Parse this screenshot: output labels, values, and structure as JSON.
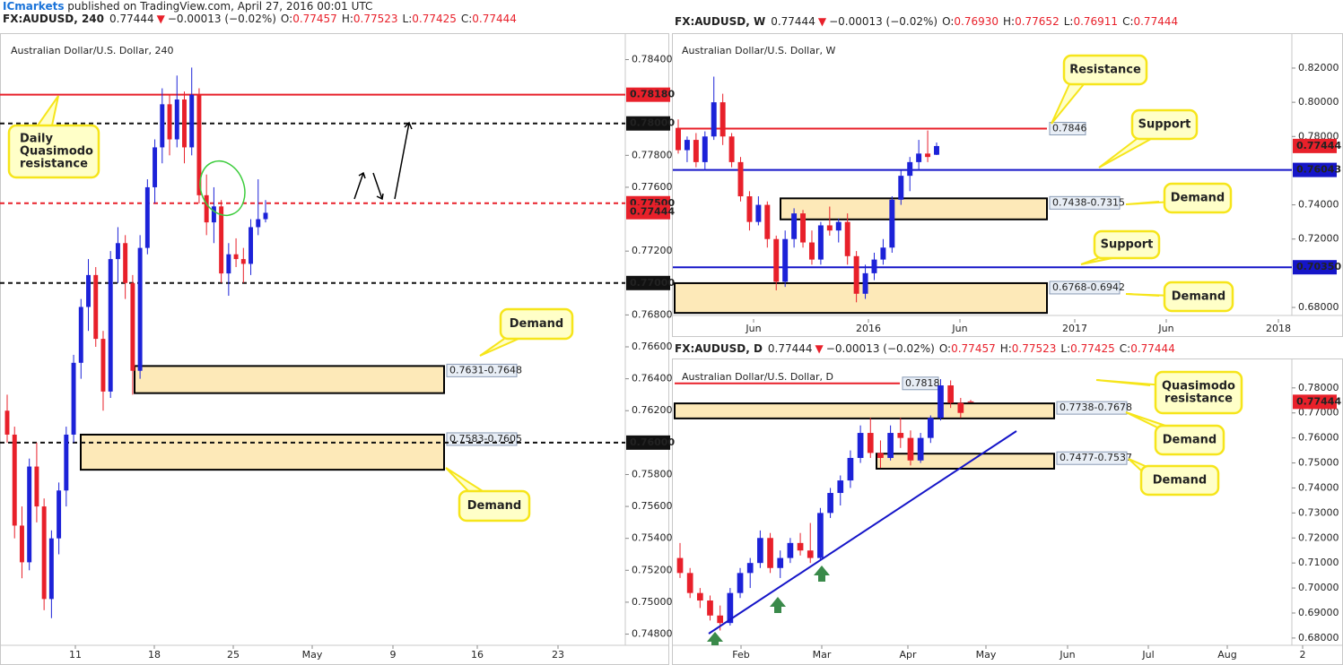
{
  "header": {
    "publisher": "ICmarkets",
    "published": " published on TradingView.com, April 27, 2016 00:01 UTC"
  },
  "charts": [
    {
      "type": "candlestick",
      "symbol": "FX:AUDUSD, 240",
      "last": "0.77444",
      "direction": "▼",
      "change": "−0.00013 (−0.02%)",
      "ohlc": [
        {
          "key": "O:",
          "value": "0.77457"
        },
        {
          "key": "H:",
          "value": "0.77523"
        },
        {
          "key": "L:",
          "value": "0.77425"
        },
        {
          "key": "C:",
          "value": "0.77444"
        }
      ],
      "title": "Australian Dollar/U.S. Dollar, 240",
      "ylim": [
        0.7473,
        0.7856
      ],
      "yticks": [
        {
          "value": 0.784,
          "label": "0.78400"
        },
        {
          "value": 0.778,
          "label": "0.77800"
        },
        {
          "value": 0.776,
          "label": "0.77600"
        },
        {
          "value": 0.772,
          "label": "0.77200"
        },
        {
          "value": 0.768,
          "label": "0.76800"
        },
        {
          "value": 0.766,
          "label": "0.76600"
        },
        {
          "value": 0.764,
          "label": "0.76400"
        },
        {
          "value": 0.762,
          "label": "0.76200"
        },
        {
          "value": 0.758,
          "label": "0.75800"
        },
        {
          "value": 0.756,
          "label": "0.75600"
        },
        {
          "value": 0.754,
          "label": "0.75400"
        },
        {
          "value": 0.752,
          "label": "0.75200"
        },
        {
          "value": 0.75,
          "label": "0.75000"
        },
        {
          "value": 0.748,
          "label": "0.74800"
        }
      ],
      "xlabels": [
        "11",
        "18",
        "25",
        "May",
        "9",
        "16",
        "23"
      ],
      "candles": [
        [
          0.762,
          0.763,
          0.76,
          0.7605
        ],
        [
          0.7605,
          0.761,
          0.754,
          0.7548
        ],
        [
          0.7548,
          0.756,
          0.7515,
          0.7525
        ],
        [
          0.7525,
          0.759,
          0.752,
          0.7585
        ],
        [
          0.7585,
          0.76,
          0.755,
          0.756
        ],
        [
          0.756,
          0.7565,
          0.7495,
          0.7502
        ],
        [
          0.7502,
          0.7545,
          0.749,
          0.754
        ],
        [
          0.754,
          0.7575,
          0.753,
          0.757
        ],
        [
          0.757,
          0.761,
          0.756,
          0.7605
        ],
        [
          0.7605,
          0.7655,
          0.76,
          0.765
        ],
        [
          0.765,
          0.769,
          0.764,
          0.7685
        ],
        [
          0.7685,
          0.7715,
          0.767,
          0.7705
        ],
        [
          0.7705,
          0.771,
          0.766,
          0.7665
        ],
        [
          0.7665,
          0.767,
          0.762,
          0.7632
        ],
        [
          0.7632,
          0.772,
          0.7628,
          0.7715
        ],
        [
          0.7715,
          0.7735,
          0.77,
          0.7725
        ],
        [
          0.7725,
          0.773,
          0.769,
          0.77
        ],
        [
          0.77,
          0.7705,
          0.763,
          0.7645
        ],
        [
          0.7645,
          0.773,
          0.764,
          0.7722
        ],
        [
          0.7722,
          0.7765,
          0.7718,
          0.776
        ],
        [
          0.776,
          0.779,
          0.775,
          0.7785
        ],
        [
          0.7785,
          0.7822,
          0.7775,
          0.7812
        ],
        [
          0.7812,
          0.7818,
          0.778,
          0.779
        ],
        [
          0.779,
          0.783,
          0.7785,
          0.7815
        ],
        [
          0.7815,
          0.782,
          0.7775,
          0.7785
        ],
        [
          0.7785,
          0.7835,
          0.778,
          0.7818
        ],
        [
          0.7818,
          0.7822,
          0.775,
          0.7755
        ],
        [
          0.7755,
          0.7768,
          0.773,
          0.7738
        ],
        [
          0.7738,
          0.776,
          0.7725,
          0.7748
        ],
        [
          0.7748,
          0.7752,
          0.77,
          0.7706
        ],
        [
          0.7706,
          0.7725,
          0.7692,
          0.7718
        ],
        [
          0.7718,
          0.7728,
          0.771,
          0.7715
        ],
        [
          0.7715,
          0.7722,
          0.77,
          0.7712
        ],
        [
          0.7712,
          0.774,
          0.7705,
          0.7735
        ],
        [
          0.7735,
          0.7765,
          0.773,
          0.774
        ],
        [
          0.774,
          0.7752,
          0.7738,
          0.7744
        ]
      ],
      "levels": [
        {
          "value": 0.7818,
          "color": "#e8202a",
          "dash": false
        },
        {
          "value": 0.78,
          "color": "#111111",
          "dash": true
        },
        {
          "value": 0.775,
          "color": "#e8202a",
          "dash": true
        },
        {
          "value": 0.77,
          "color": "#111111",
          "dash": true
        },
        {
          "value": 0.76,
          "color": "#111111",
          "dash": true
        }
      ],
      "zones": [
        {
          "values": [
            0.7631,
            0.7648
          ],
          "label": "0.7631-0.7648"
        },
        {
          "values": [
            0.7583,
            0.7605
          ],
          "label": "0.7583-0.7605"
        }
      ],
      "price_tags": [
        {
          "value": 0.7818,
          "label": "0.78180",
          "color": "#e8202a"
        },
        {
          "value": 0.78,
          "label": "0.78000",
          "color": "#111111"
        },
        {
          "value": 0.775,
          "label": "0.77500",
          "color": "#e8202a"
        },
        {
          "value": 0.77444,
          "label": "0.77444",
          "color": "#e8202a"
        },
        {
          "value": 0.77,
          "label": "0.77000",
          "color": "#111111"
        },
        {
          "value": 0.76,
          "label": "0.76000",
          "color": "#111111"
        }
      ],
      "callouts": [
        [
          "Daily",
          "Quasimodo",
          "resistance"
        ],
        [
          "Demand"
        ],
        [
          "Demand"
        ]
      ]
    },
    {
      "type": "candlestick",
      "symbol": "FX:AUDUSD, W",
      "last": "0.77444",
      "direction": "▼",
      "change": "−0.00013 (−0.02%)",
      "ohlc": [
        {
          "key": "O:",
          "value": "0.76930"
        },
        {
          "key": "H:",
          "value": "0.77652"
        },
        {
          "key": "L:",
          "value": "0.76911"
        },
        {
          "key": "C:",
          "value": "0.77444"
        }
      ],
      "title": "Australian Dollar/U.S. Dollar, W",
      "ylim": [
        0.6753,
        0.8399
      ],
      "yticks": [
        {
          "value": 0.82,
          "label": "0.82000"
        },
        {
          "value": 0.8,
          "label": "0.80000"
        },
        {
          "value": 0.78,
          "label": "0.78000"
        },
        {
          "value": 0.74,
          "label": "0.74000"
        },
        {
          "value": 0.72,
          "label": "0.72000"
        },
        {
          "value": 0.68,
          "label": "0.68000"
        }
      ],
      "xlabels": [
        "Jun",
        "2016",
        "Jun",
        "2017",
        "Jun",
        "2018"
      ],
      "candles": [
        [
          0.785,
          0.79,
          0.77,
          0.772
        ],
        [
          0.772,
          0.78,
          0.765,
          0.778
        ],
        [
          0.778,
          0.782,
          0.762,
          0.765
        ],
        [
          0.765,
          0.783,
          0.76,
          0.78
        ],
        [
          0.78,
          0.815,
          0.778,
          0.8
        ],
        [
          0.8,
          0.805,
          0.775,
          0.78
        ],
        [
          0.78,
          0.782,
          0.762,
          0.765
        ],
        [
          0.765,
          0.768,
          0.742,
          0.745
        ],
        [
          0.745,
          0.748,
          0.725,
          0.73
        ],
        [
          0.73,
          0.745,
          0.728,
          0.74
        ],
        [
          0.74,
          0.742,
          0.715,
          0.72
        ],
        [
          0.72,
          0.722,
          0.69,
          0.695
        ],
        [
          0.695,
          0.725,
          0.692,
          0.72
        ],
        [
          0.72,
          0.738,
          0.715,
          0.735
        ],
        [
          0.735,
          0.737,
          0.715,
          0.718
        ],
        [
          0.718,
          0.725,
          0.705,
          0.708
        ],
        [
          0.708,
          0.73,
          0.705,
          0.728
        ],
        [
          0.728,
          0.739,
          0.722,
          0.725
        ],
        [
          0.725,
          0.732,
          0.718,
          0.73
        ],
        [
          0.73,
          0.735,
          0.705,
          0.71
        ],
        [
          0.71,
          0.713,
          0.683,
          0.688
        ],
        [
          0.688,
          0.705,
          0.685,
          0.7
        ],
        [
          0.7,
          0.712,
          0.696,
          0.708
        ],
        [
          0.708,
          0.72,
          0.705,
          0.715
        ],
        [
          0.715,
          0.745,
          0.712,
          0.743
        ],
        [
          0.743,
          0.76,
          0.74,
          0.757
        ],
        [
          0.757,
          0.768,
          0.748,
          0.765
        ],
        [
          0.765,
          0.778,
          0.76,
          0.77
        ],
        [
          0.77,
          0.7835,
          0.765,
          0.768
        ],
        [
          0.7693,
          0.7765,
          0.7691,
          0.7744
        ]
      ],
      "levels": [
        {
          "value": 0.7846,
          "color": "#e8202a",
          "dash": false,
          "label": "0.7846"
        },
        {
          "value": 0.76043,
          "color": "#1515c8",
          "dash": false
        },
        {
          "value": 0.7035,
          "color": "#1515c8",
          "dash": false
        }
      ],
      "zones": [
        {
          "values": [
            0.7438,
            0.7315
          ],
          "label": "0.7438-0.7315"
        },
        {
          "values": [
            0.6768,
            0.6942
          ],
          "label": "0.6768-0.6942"
        }
      ],
      "price_tags": [
        {
          "value": 0.77444,
          "label": "0.77444",
          "color": "#e8202a"
        },
        {
          "value": 0.76043,
          "label": "0.76043",
          "color": "#1515c8"
        },
        {
          "value": 0.7035,
          "label": "0.70350",
          "color": "#1515c8"
        }
      ],
      "callouts": [
        [
          "Resistance"
        ],
        [
          "Support"
        ],
        [
          "Demand"
        ],
        [
          "Support"
        ],
        [
          "Demand"
        ]
      ]
    },
    {
      "type": "candlestick",
      "symbol": "FX:AUDUSD, D",
      "last": "0.77444",
      "direction": "▼",
      "change": "−0.00013 (−0.02%)",
      "ohlc": [
        {
          "key": "O:",
          "value": "0.77457"
        },
        {
          "key": "H:",
          "value": "0.77523"
        },
        {
          "key": "L:",
          "value": "0.77425"
        },
        {
          "key": "C:",
          "value": "0.77444"
        }
      ],
      "title": "Australian Dollar/U.S. Dollar, D",
      "ylim": [
        0.6771,
        0.7914
      ],
      "yticks": [
        {
          "value": 0.78,
          "label": "0.78000"
        },
        {
          "value": 0.77,
          "label": "0.77000"
        },
        {
          "value": 0.76,
          "label": "0.76000"
        },
        {
          "value": 0.75,
          "label": "0.75000"
        },
        {
          "value": 0.74,
          "label": "0.74000"
        },
        {
          "value": 0.73,
          "label": "0.73000"
        },
        {
          "value": 0.72,
          "label": "0.72000"
        },
        {
          "value": 0.71,
          "label": "0.71000"
        },
        {
          "value": 0.7,
          "label": "0.70000"
        },
        {
          "value": 0.69,
          "label": "0.69000"
        },
        {
          "value": 0.68,
          "label": "0.68000"
        }
      ],
      "xlabels": [
        "Feb",
        "Mar",
        "Apr",
        "May",
        "Jun",
        "Jul",
        "Aug",
        "2"
      ],
      "candles": [
        [
          0.712,
          0.718,
          0.704,
          0.706
        ],
        [
          0.706,
          0.708,
          0.696,
          0.698
        ],
        [
          0.698,
          0.7,
          0.692,
          0.695
        ],
        [
          0.695,
          0.697,
          0.687,
          0.689
        ],
        [
          0.689,
          0.693,
          0.683,
          0.686
        ],
        [
          0.686,
          0.7,
          0.685,
          0.698
        ],
        [
          0.698,
          0.708,
          0.696,
          0.706
        ],
        [
          0.706,
          0.712,
          0.7,
          0.71
        ],
        [
          0.71,
          0.723,
          0.708,
          0.72
        ],
        [
          0.72,
          0.722,
          0.706,
          0.708
        ],
        [
          0.708,
          0.715,
          0.704,
          0.712
        ],
        [
          0.712,
          0.72,
          0.71,
          0.718
        ],
        [
          0.718,
          0.722,
          0.713,
          0.715
        ],
        [
          0.715,
          0.726,
          0.71,
          0.712
        ],
        [
          0.712,
          0.732,
          0.711,
          0.73
        ],
        [
          0.73,
          0.74,
          0.728,
          0.738
        ],
        [
          0.738,
          0.745,
          0.733,
          0.743
        ],
        [
          0.743,
          0.755,
          0.74,
          0.752
        ],
        [
          0.752,
          0.765,
          0.75,
          0.762
        ],
        [
          0.762,
          0.768,
          0.752,
          0.754
        ],
        [
          0.754,
          0.759,
          0.748,
          0.752
        ],
        [
          0.752,
          0.765,
          0.751,
          0.762
        ],
        [
          0.762,
          0.768,
          0.756,
          0.76
        ],
        [
          0.76,
          0.763,
          0.749,
          0.751
        ],
        [
          0.751,
          0.762,
          0.75,
          0.76
        ],
        [
          0.76,
          0.769,
          0.758,
          0.768
        ],
        [
          0.768,
          0.7835,
          0.767,
          0.781
        ],
        [
          0.781,
          0.783,
          0.772,
          0.774
        ],
        [
          0.774,
          0.776,
          0.768,
          0.77
        ],
        [
          0.7746,
          0.7752,
          0.7743,
          0.7744
        ]
      ],
      "levels": [
        {
          "value": 0.7818,
          "color": "#e8202a",
          "dash": false,
          "label": "0.7818"
        }
      ],
      "zones": [
        {
          "values": [
            0.7738,
            0.7678
          ],
          "label": "0.7738-0.7678"
        },
        {
          "values": [
            0.7477,
            0.7537
          ],
          "label": "0.7477-0.7537"
        }
      ],
      "price_tags": [
        {
          "value": 0.77444,
          "label": "0.77444",
          "color": "#e8202a"
        }
      ],
      "callouts": [
        [
          "Quasimodo",
          "resistance"
        ],
        [
          "Demand"
        ],
        [
          "Demand"
        ]
      ]
    }
  ]
}
